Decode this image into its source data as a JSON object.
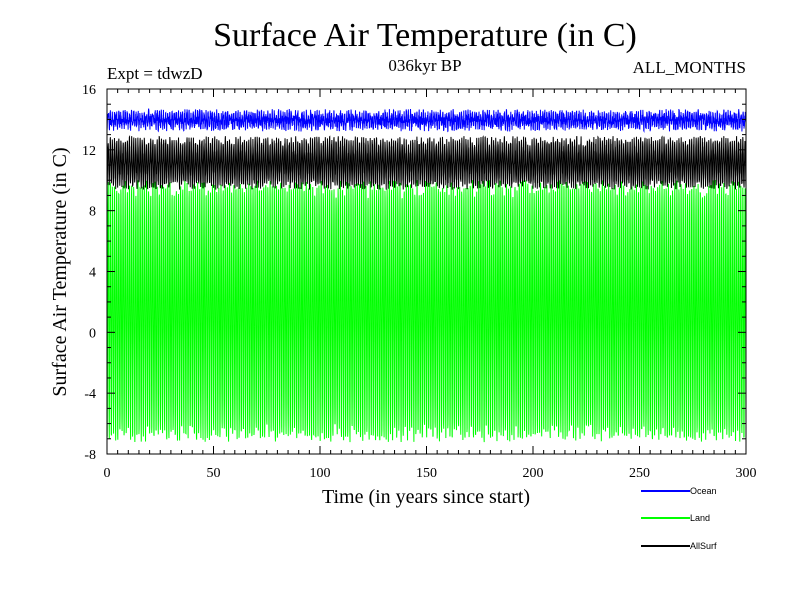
{
  "chart_data": {
    "type": "line",
    "title": "Surface Air Temperature (in C)",
    "subtitle": "036kyr BP",
    "expt_label": "Expt = tdwzD",
    "months_label": "ALL_MONTHS",
    "xlabel": "Time (in years since start)",
    "ylabel": "Surface Air Temperature (in C)",
    "xlim": [
      0,
      300
    ],
    "ylim": [
      -8,
      16
    ],
    "xticks": [
      0,
      50,
      100,
      150,
      200,
      250,
      300
    ],
    "yticks": [
      -8,
      -4,
      0,
      4,
      8,
      12,
      16
    ],
    "x_step_months": 0.0833333,
    "series": [
      {
        "name": "Ocean",
        "color": "#0000ff",
        "seasonal_min": 13.6,
        "seasonal_max": 14.3,
        "envelope_min": 13.2,
        "envelope_max": 14.7
      },
      {
        "name": "Land",
        "color": "#00ff00",
        "seasonal_min": -6.8,
        "seasonal_max": 9.6,
        "envelope_min": -7.4,
        "envelope_max": 10.2
      },
      {
        "name": "AllSurf",
        "color": "#000000",
        "seasonal_min": 9.7,
        "seasonal_max": 12.6,
        "envelope_min": 9.3,
        "envelope_max": 12.9
      }
    ]
  }
}
